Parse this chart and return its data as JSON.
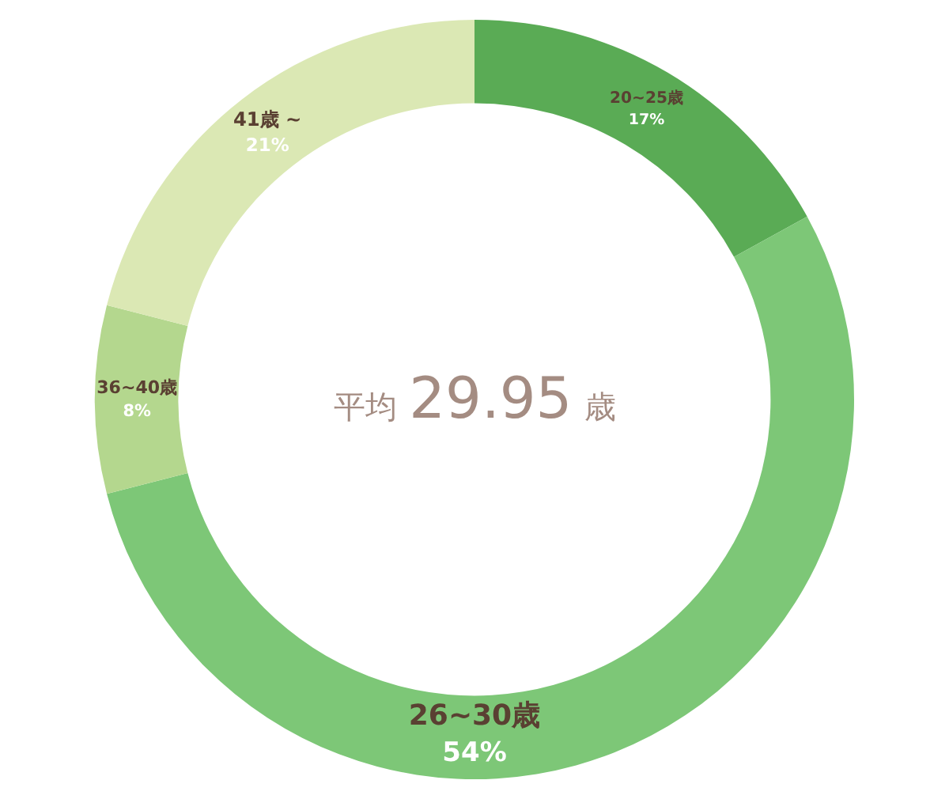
{
  "chart_data": {
    "type": "donut",
    "categories": [
      "20~25歳",
      "26~30歳",
      "36~40歳",
      "41歳 ~"
    ],
    "values": [
      17,
      54,
      8,
      21
    ],
    "value_labels": [
      "17%",
      "54%",
      "8%",
      "21%"
    ],
    "colors": [
      "#5aab55",
      "#7dc777",
      "#b4d78e",
      "#dbe8b4"
    ],
    "annotations": [
      "平均 29.95 歳"
    ],
    "legend": false
  }
}
